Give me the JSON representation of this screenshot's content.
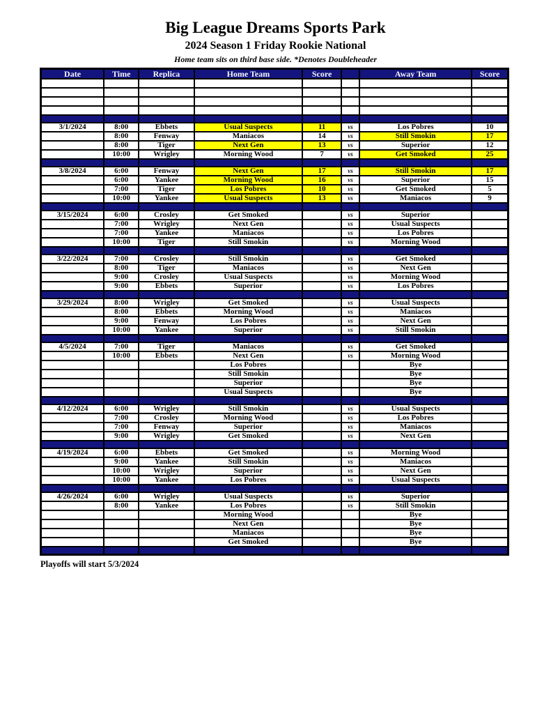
{
  "page": {
    "title": "Big League Dreams Sports Park",
    "subtitle": "2024 Season 1 Friday Rookie National",
    "note": "Home team sits on third base side.  *Denotes Doubleheader",
    "footer": "Playoffs will start 5/3/2024"
  },
  "colors": {
    "navy": "#14147e",
    "yellow": "#ffff00",
    "header_text": "#f4f6ff"
  },
  "table": {
    "headers": [
      "Date",
      "Time",
      "Replica",
      "Home Team",
      "Score",
      "",
      "Away Team",
      "Score"
    ],
    "vs_label": "vs",
    "rows": [
      {
        "type": "empty"
      },
      {
        "type": "empty"
      },
      {
        "type": "empty"
      },
      {
        "type": "empty"
      },
      {
        "type": "sep"
      },
      {
        "type": "game",
        "date": "3/1/2024",
        "time": "8:00",
        "replica": "Ebbets",
        "home": "Usual Suspects",
        "hs": "11",
        "vs": true,
        "away": "Los Pobres",
        "as": "10",
        "hl": "home"
      },
      {
        "type": "game",
        "date": "",
        "time": "8:00",
        "replica": "Fenway",
        "home": "Maniacos",
        "hs": "14",
        "vs": true,
        "away": "Still Smokin",
        "as": "17",
        "hl": "away"
      },
      {
        "type": "game",
        "date": "",
        "time": "8:00",
        "replica": "Tiger",
        "home": "Next Gen",
        "hs": "13",
        "vs": true,
        "away": "Superior",
        "as": "12",
        "hl": "home"
      },
      {
        "type": "game",
        "date": "",
        "time": "10:00",
        "replica": "Wrigley",
        "home": "Morning Wood",
        "hs": "7",
        "vs": true,
        "away": "Get Smoked",
        "as": "25",
        "hl": "away"
      },
      {
        "type": "sep"
      },
      {
        "type": "game",
        "date": "3/8/2024",
        "time": "6:00",
        "replica": "Fenway",
        "home": "Next Gen",
        "hs": "17",
        "vs": true,
        "away": "Still Smokin",
        "as": "17",
        "hl": "both"
      },
      {
        "type": "game",
        "date": "",
        "time": "6:00",
        "replica": "Yankee",
        "home": "Morning Wood",
        "hs": "16",
        "vs": true,
        "away": "Superior",
        "as": "15",
        "hl": "home"
      },
      {
        "type": "game",
        "date": "",
        "time": "7:00",
        "replica": "Tiger",
        "home": "Los Pobres",
        "hs": "10",
        "vs": true,
        "away": "Get Smoked",
        "as": "5",
        "hl": "home"
      },
      {
        "type": "game",
        "date": "",
        "time": "10:00",
        "replica": "Yankee",
        "home": "Usual Suspects",
        "hs": "13",
        "vs": true,
        "away": "Maniacos",
        "as": "9",
        "hl": "home"
      },
      {
        "type": "sep"
      },
      {
        "type": "game",
        "date": "3/15/2024",
        "time": "6:00",
        "replica": "Crosley",
        "home": "Get Smoked",
        "hs": "",
        "vs": true,
        "away": "Superior",
        "as": "",
        "hl": "none"
      },
      {
        "type": "game",
        "date": "",
        "time": "7:00",
        "replica": "Wrigley",
        "home": "Next Gen",
        "hs": "",
        "vs": true,
        "away": "Usual Suspects",
        "as": "",
        "hl": "none"
      },
      {
        "type": "game",
        "date": "",
        "time": "7:00",
        "replica": "Yankee",
        "home": "Maniacos",
        "hs": "",
        "vs": true,
        "away": "Los Pobres",
        "as": "",
        "hl": "none"
      },
      {
        "type": "game",
        "date": "",
        "time": "10:00",
        "replica": "Tiger",
        "home": "Still Smokin",
        "hs": "",
        "vs": true,
        "away": "Morning Wood",
        "as": "",
        "hl": "none"
      },
      {
        "type": "sep"
      },
      {
        "type": "game",
        "date": "3/22/2024",
        "time": "7:00",
        "replica": "Crosley",
        "home": "Still Smokin",
        "hs": "",
        "vs": true,
        "away": "Get Smoked",
        "as": "",
        "hl": "none"
      },
      {
        "type": "game",
        "date": "",
        "time": "8:00",
        "replica": "Tiger",
        "home": "Maniacos",
        "hs": "",
        "vs": true,
        "away": "Next Gen",
        "as": "",
        "hl": "none"
      },
      {
        "type": "game",
        "date": "",
        "time": "9:00",
        "replica": "Crosley",
        "home": "Usual Suspects",
        "hs": "",
        "vs": true,
        "away": "Morning Wood",
        "as": "",
        "hl": "none"
      },
      {
        "type": "game",
        "date": "",
        "time": "9:00",
        "replica": "Ebbets",
        "home": "Superior",
        "hs": "",
        "vs": true,
        "away": "Los Pobres",
        "as": "",
        "hl": "none"
      },
      {
        "type": "sep"
      },
      {
        "type": "game",
        "date": "3/29/2024",
        "time": "8:00",
        "replica": "Wrigley",
        "home": "Get Smoked",
        "hs": "",
        "vs": true,
        "away": "Usual Suspects",
        "as": "",
        "hl": "none"
      },
      {
        "type": "game",
        "date": "",
        "time": "8:00",
        "replica": "Ebbets",
        "home": "Morning Wood",
        "hs": "",
        "vs": true,
        "away": "Maniacos",
        "as": "",
        "hl": "none"
      },
      {
        "type": "game",
        "date": "",
        "time": "9:00",
        "replica": "Fenway",
        "home": "Los Pobres",
        "hs": "",
        "vs": true,
        "away": "Next Gen",
        "as": "",
        "hl": "none"
      },
      {
        "type": "game",
        "date": "",
        "time": "10:00",
        "replica": "Yankee",
        "home": "Superior",
        "hs": "",
        "vs": true,
        "away": "Still Smokin",
        "as": "",
        "hl": "none"
      },
      {
        "type": "sep"
      },
      {
        "type": "game",
        "date": "4/5/2024",
        "time": "7:00",
        "replica": "Tiger",
        "home": "Maniacos",
        "hs": "",
        "vs": true,
        "away": "Get Smoked",
        "as": "",
        "hl": "none"
      },
      {
        "type": "game",
        "date": "",
        "time": "10:00",
        "replica": "Ebbets",
        "home": "Next Gen",
        "hs": "",
        "vs": true,
        "away": "Morning Wood",
        "as": "",
        "hl": "none"
      },
      {
        "type": "game",
        "date": "",
        "time": "",
        "replica": "",
        "home": "Los Pobres",
        "hs": "",
        "vs": false,
        "away": "Bye",
        "as": "",
        "hl": "none"
      },
      {
        "type": "game",
        "date": "",
        "time": "",
        "replica": "",
        "home": "Still Smokin",
        "hs": "",
        "vs": false,
        "away": "Bye",
        "as": "",
        "hl": "none"
      },
      {
        "type": "game",
        "date": "",
        "time": "",
        "replica": "",
        "home": "Superior",
        "hs": "",
        "vs": false,
        "away": "Bye",
        "as": "",
        "hl": "none"
      },
      {
        "type": "game",
        "date": "",
        "time": "",
        "replica": "",
        "home": "Usual Suspects",
        "hs": "",
        "vs": false,
        "away": "Bye",
        "as": "",
        "hl": "none"
      },
      {
        "type": "sep"
      },
      {
        "type": "game",
        "date": "4/12/2024",
        "time": "6:00",
        "replica": "Wrigley",
        "home": "Still Smokin",
        "hs": "",
        "vs": true,
        "away": "Usual Suspects",
        "as": "",
        "hl": "none"
      },
      {
        "type": "game",
        "date": "",
        "time": "7:00",
        "replica": "Crosley",
        "home": "Morning Wood",
        "hs": "",
        "vs": true,
        "away": "Los Pobres",
        "as": "",
        "hl": "none"
      },
      {
        "type": "game",
        "date": "",
        "time": "7:00",
        "replica": "Fenway",
        "home": "Superior",
        "hs": "",
        "vs": true,
        "away": "Maniacos",
        "as": "",
        "hl": "none"
      },
      {
        "type": "game",
        "date": "",
        "time": "9:00",
        "replica": "Wrigley",
        "home": "Get Smoked",
        "hs": "",
        "vs": true,
        "away": "Next Gen",
        "as": "",
        "hl": "none"
      },
      {
        "type": "sep"
      },
      {
        "type": "game",
        "date": "4/19/2024",
        "time": "6:00",
        "replica": "Ebbets",
        "home": "Get Smoked",
        "hs": "",
        "vs": true,
        "away": "Morning Wood",
        "as": "",
        "hl": "none"
      },
      {
        "type": "game",
        "date": "",
        "time": "9:00",
        "replica": "Yankee",
        "home": "Still Smokin",
        "hs": "",
        "vs": true,
        "away": "Maniacos",
        "as": "",
        "hl": "none"
      },
      {
        "type": "game",
        "date": "",
        "time": "10:00",
        "replica": "Wrigley",
        "home": "Superior",
        "hs": "",
        "vs": true,
        "away": "Next Gen",
        "as": "",
        "hl": "none"
      },
      {
        "type": "game",
        "date": "",
        "time": "10:00",
        "replica": "Yankee",
        "home": "Los Pobres",
        "hs": "",
        "vs": true,
        "away": "Usual Suspects",
        "as": "",
        "hl": "none"
      },
      {
        "type": "sep"
      },
      {
        "type": "game",
        "date": "4/26/2024",
        "time": "6:00",
        "replica": "Wrigley",
        "home": "Usual Suspects",
        "hs": "",
        "vs": true,
        "away": "Superior",
        "as": "",
        "hl": "none"
      },
      {
        "type": "game",
        "date": "",
        "time": "8:00",
        "replica": "Yankee",
        "home": "Los Pobres",
        "hs": "",
        "vs": true,
        "away": "Still Smokin",
        "as": "",
        "hl": "none"
      },
      {
        "type": "game",
        "date": "",
        "time": "",
        "replica": "",
        "home": "Morning Wood",
        "hs": "",
        "vs": false,
        "away": "Bye",
        "as": "",
        "hl": "none"
      },
      {
        "type": "game",
        "date": "",
        "time": "",
        "replica": "",
        "home": "Next Gen",
        "hs": "",
        "vs": false,
        "away": "Bye",
        "as": "",
        "hl": "none"
      },
      {
        "type": "game",
        "date": "",
        "time": "",
        "replica": "",
        "home": "Maniacos",
        "hs": "",
        "vs": false,
        "away": "Bye",
        "as": "",
        "hl": "none"
      },
      {
        "type": "game",
        "date": "",
        "time": "",
        "replica": "",
        "home": "Get Smoked",
        "hs": "",
        "vs": false,
        "away": "Bye",
        "as": "",
        "hl": "none"
      },
      {
        "type": "sep"
      }
    ]
  }
}
